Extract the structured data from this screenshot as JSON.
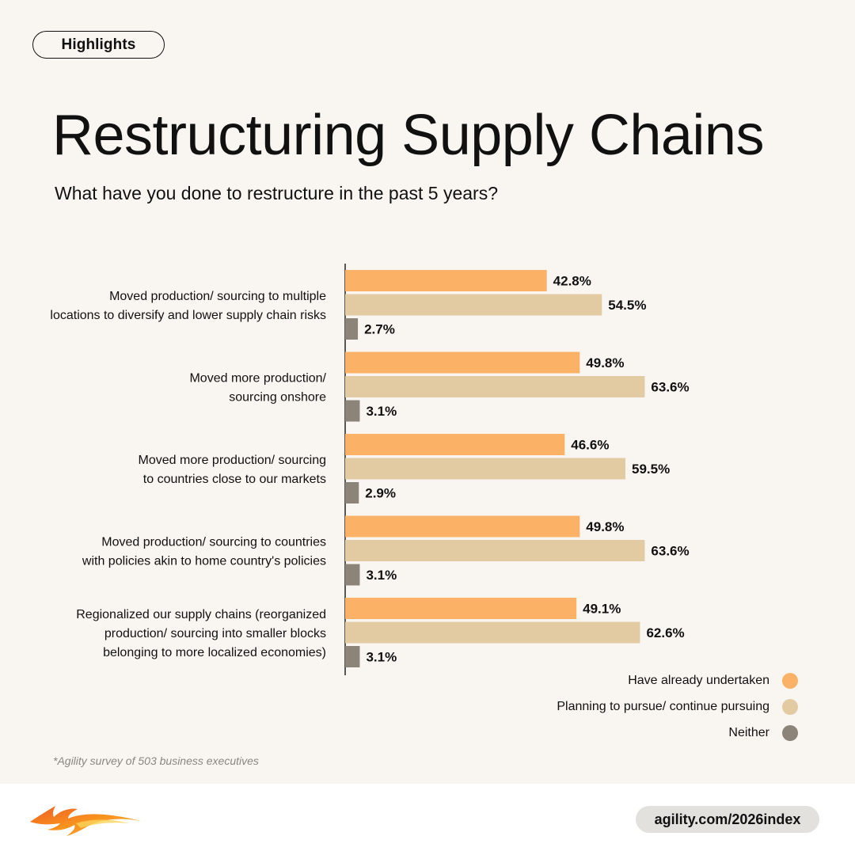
{
  "tag": "Highlights",
  "title": "Restructuring Supply Chains",
  "subtitle": "What have you done to restructure in the past 5 years?",
  "chart_data": {
    "type": "bar",
    "orientation": "horizontal",
    "title": "Restructuring Supply Chains",
    "subtitle": "What have you done to restructure in the past 5 years?",
    "xlim": [
      0,
      100
    ],
    "value_suffix": "%",
    "categories": [
      [
        "Moved production/ sourcing to multiple",
        "locations to diversify and lower supply chain risks"
      ],
      [
        "Moved more production/",
        "sourcing onshore"
      ],
      [
        "Moved more production/ sourcing",
        "to countries close to our markets"
      ],
      [
        "Moved production/ sourcing to countries",
        "with policies akin to home country's policies"
      ],
      [
        "Regionalized our supply chains (reorganized",
        "production/ sourcing into smaller blocks",
        "belonging to more localized economies)"
      ]
    ],
    "series": [
      {
        "name": "Have already undertaken",
        "color": "#fbb267",
        "values": [
          42.8,
          49.8,
          46.6,
          49.8,
          49.1
        ]
      },
      {
        "name": "Planning to pursue/ continue pursuing",
        "color": "#e2cba2",
        "values": [
          54.5,
          63.6,
          59.5,
          63.6,
          62.6
        ]
      },
      {
        "name": "Neither",
        "color": "#8c8379",
        "values": [
          2.7,
          3.1,
          2.9,
          3.1,
          3.1
        ]
      }
    ]
  },
  "legend": [
    {
      "label": "Have already undertaken",
      "color": "#fbb267"
    },
    {
      "label": "Planning to pursue/ continue pursuing",
      "color": "#e2cba2"
    },
    {
      "label": "Neither",
      "color": "#8c8379"
    }
  ],
  "footnote": "*Agility survey of 503 business executives",
  "footer": {
    "url": "agility.com/2026index",
    "logo_icon": "agility-phoenix-logo"
  }
}
